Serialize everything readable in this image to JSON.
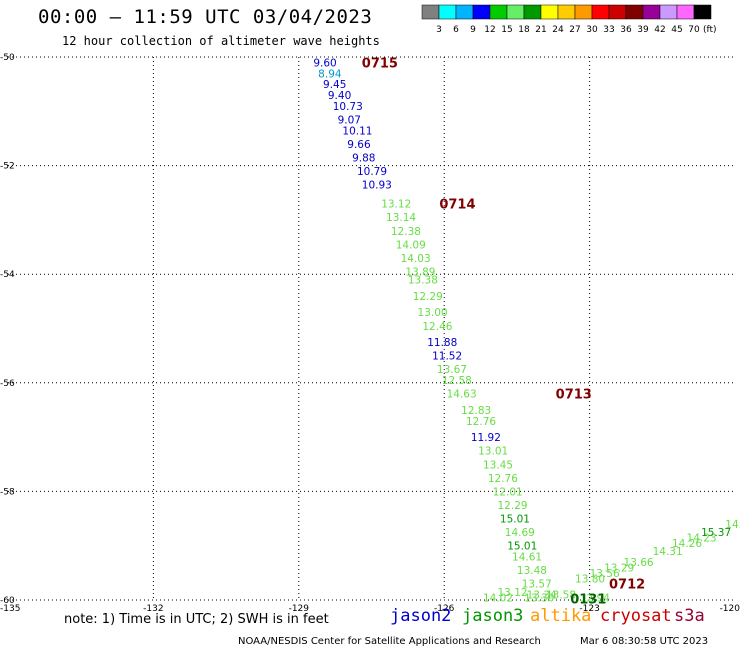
{
  "title": "00:00 – 11:59 UTC 03/04/2023",
  "subtitle": "12 hour collection of altimeter wave heights",
  "legend": {
    "unit": "(ft)",
    "colors": [
      "#808080",
      "#00ffff",
      "#00b4ff",
      "#0000ff",
      "#00cc00",
      "#66ee66",
      "#009900",
      "#ffff00",
      "#ffcc00",
      "#ff9900",
      "#ff0000",
      "#cc0000",
      "#800000",
      "#990099",
      "#cc99ff",
      "#ff66ff",
      "#000000"
    ],
    "labels": [
      "3",
      "6",
      "9",
      "12",
      "15",
      "18",
      "21",
      "24",
      "27",
      "30",
      "33",
      "36",
      "39",
      "42",
      "45",
      "70"
    ]
  },
  "axes": {
    "lat_labels": [
      "-50",
      "-52",
      "-54",
      "-56",
      "-58",
      "-60"
    ],
    "lon_labels": [
      "-135",
      "-132",
      "-129",
      "-126",
      "-123",
      "-120"
    ],
    "lat_range": [
      -60,
      -50
    ],
    "lon_range": [
      -135,
      -120
    ]
  },
  "note": "note:  1) Time is in UTC;  2) SWH is in feet",
  "satellites": [
    {
      "name": "jason2",
      "color": "#0000cc"
    },
    {
      "name": "jason3",
      "color": "#009900"
    },
    {
      "name": "altika",
      "color": "#ff9900"
    },
    {
      "name": "cryosat",
      "color": "#cc0000"
    },
    {
      "name": "s3a",
      "color": "#990033"
    }
  ],
  "footer_left": "NOAA/NESDIS Center for Satellite Applications and Research",
  "footer_right": "Mar  6 08:30:58 UTC 2023",
  "chart_data": {
    "type": "scatter",
    "grid": true,
    "time_labels": [
      {
        "text": "0715",
        "lon": -127.7,
        "lat": -50.1,
        "color": "#800000"
      },
      {
        "text": "0714",
        "lon": -126.1,
        "lat": -52.7,
        "color": "#800000"
      },
      {
        "text": "0713",
        "lon": -123.7,
        "lat": -56.2,
        "color": "#800000"
      },
      {
        "text": "0712",
        "lon": -122.6,
        "lat": -59.7,
        "color": "#800000"
      },
      {
        "text": "0131",
        "lon": -123.4,
        "lat": -59.97,
        "color": "#006600"
      }
    ],
    "points": [
      {
        "v": "9.60",
        "lon": -128.7,
        "lat": -50.1,
        "color": "#0000cc"
      },
      {
        "v": "8.94",
        "lon": -128.6,
        "lat": -50.3,
        "color": "#0099cc"
      },
      {
        "v": "9.45",
        "lon": -128.5,
        "lat": -50.5,
        "color": "#0000cc"
      },
      {
        "v": "9.40",
        "lon": -128.4,
        "lat": -50.7,
        "color": "#0000cc"
      },
      {
        "v": "10.73",
        "lon": -128.3,
        "lat": -50.9,
        "color": "#0000cc"
      },
      {
        "v": "9.07",
        "lon": -128.2,
        "lat": -51.15,
        "color": "#0000cc"
      },
      {
        "v": "10.11",
        "lon": -128.1,
        "lat": -51.35,
        "color": "#0000cc"
      },
      {
        "v": "9.66",
        "lon": -128.0,
        "lat": -51.6,
        "color": "#0000cc"
      },
      {
        "v": "9.88",
        "lon": -127.9,
        "lat": -51.85,
        "color": "#0000cc"
      },
      {
        "v": "10.79",
        "lon": -127.8,
        "lat": -52.1,
        "color": "#0000cc"
      },
      {
        "v": "10.93",
        "lon": -127.7,
        "lat": -52.35,
        "color": "#0000cc"
      },
      {
        "v": "13.12",
        "lon": -127.3,
        "lat": -52.7,
        "color": "#66dd44"
      },
      {
        "v": "13.14",
        "lon": -127.2,
        "lat": -52.95,
        "color": "#66dd44"
      },
      {
        "v": "12.38",
        "lon": -127.1,
        "lat": -53.2,
        "color": "#66dd44"
      },
      {
        "v": "14.09",
        "lon": -127.0,
        "lat": -53.45,
        "color": "#66dd44"
      },
      {
        "v": "14.03",
        "lon": -126.9,
        "lat": -53.7,
        "color": "#66dd44"
      },
      {
        "v": "13.89",
        "lon": -126.8,
        "lat": -53.95,
        "color": "#66dd44"
      },
      {
        "v": "13.38",
        "lon": -126.75,
        "lat": -54.1,
        "color": "#66dd44"
      },
      {
        "v": "12.29",
        "lon": -126.65,
        "lat": -54.4,
        "color": "#66dd44"
      },
      {
        "v": "13.00",
        "lon": -126.55,
        "lat": -54.7,
        "color": "#66dd44"
      },
      {
        "v": "12.46",
        "lon": -126.45,
        "lat": -54.95,
        "color": "#66dd44"
      },
      {
        "v": "11.88",
        "lon": -126.35,
        "lat": -55.25,
        "color": "#0000cc"
      },
      {
        "v": "11.52",
        "lon": -126.25,
        "lat": -55.5,
        "color": "#0000cc"
      },
      {
        "v": "13.67",
        "lon": -126.15,
        "lat": -55.75,
        "color": "#66dd44"
      },
      {
        "v": "12.58",
        "lon": -126.05,
        "lat": -55.95,
        "color": "#66dd44"
      },
      {
        "v": "14.63",
        "lon": -125.95,
        "lat": -56.2,
        "color": "#66dd44"
      },
      {
        "v": "12.83",
        "lon": -125.65,
        "lat": -56.5,
        "color": "#66dd44"
      },
      {
        "v": "12.76",
        "lon": -125.55,
        "lat": -56.7,
        "color": "#66dd44"
      },
      {
        "v": "11.92",
        "lon": -125.45,
        "lat": -57.0,
        "color": "#0000cc"
      },
      {
        "v": "13.01",
        "lon": -125.3,
        "lat": -57.25,
        "color": "#66dd44"
      },
      {
        "v": "13.45",
        "lon": -125.2,
        "lat": -57.5,
        "color": "#66dd44"
      },
      {
        "v": "12.76",
        "lon": -125.1,
        "lat": -57.75,
        "color": "#66dd44"
      },
      {
        "v": "12.01",
        "lon": -125.0,
        "lat": -58.0,
        "color": "#66dd44"
      },
      {
        "v": "12.29",
        "lon": -124.9,
        "lat": -58.25,
        "color": "#66dd44"
      },
      {
        "v": "15.01",
        "lon": -124.85,
        "lat": -58.5,
        "color": "#009900"
      },
      {
        "v": "14.69",
        "lon": -124.75,
        "lat": -58.75,
        "color": "#66dd44"
      },
      {
        "v": "15.01",
        "lon": -124.7,
        "lat": -59.0,
        "color": "#009900"
      },
      {
        "v": "14.61",
        "lon": -124.6,
        "lat": -59.2,
        "color": "#66dd44"
      },
      {
        "v": "13.48",
        "lon": -124.5,
        "lat": -59.45,
        "color": "#66dd44"
      },
      {
        "v": "13.57",
        "lon": -124.4,
        "lat": -59.7,
        "color": "#66dd44"
      },
      {
        "v": "13.30",
        "lon": -124.35,
        "lat": -59.95,
        "color": "#66dd44"
      },
      {
        "v": "13.34",
        "lon": -124.3,
        "lat": -59.9,
        "color": "#66dd44"
      },
      {
        "v": "13.58",
        "lon": -123.9,
        "lat": -59.9,
        "color": "#66dd44"
      },
      {
        "v": "12.94",
        "lon": -123.2,
        "lat": -59.95,
        "color": "#66dd44"
      },
      {
        "v": "13.12",
        "lon": -124.9,
        "lat": -59.85,
        "color": "#66dd44"
      },
      {
        "v": "14.02",
        "lon": -125.2,
        "lat": -59.95,
        "color": "#66dd44"
      },
      {
        "v": "13.80",
        "lon": -123.3,
        "lat": -59.6,
        "color": "#66dd44"
      },
      {
        "v": "13.56",
        "lon": -123.0,
        "lat": -59.5,
        "color": "#66dd44"
      },
      {
        "v": "13.29",
        "lon": -122.7,
        "lat": -59.4,
        "color": "#66dd44"
      },
      {
        "v": "13.66",
        "lon": -122.3,
        "lat": -59.3,
        "color": "#66dd44"
      },
      {
        "v": "14.31",
        "lon": -121.7,
        "lat": -59.1,
        "color": "#66dd44"
      },
      {
        "v": "14.26",
        "lon": -121.3,
        "lat": -58.95,
        "color": "#66dd44"
      },
      {
        "v": "14.23",
        "lon": -121.0,
        "lat": -58.85,
        "color": "#66dd44"
      },
      {
        "v": "15.37",
        "lon": -120.7,
        "lat": -58.75,
        "color": "#009900"
      },
      {
        "v": "14.39",
        "lon": -120.2,
        "lat": -58.6,
        "color": "#66dd44"
      },
      {
        "v": "15.30",
        "lon": -119.9,
        "lat": -58.4,
        "color": "#009900"
      },
      {
        "v": "14.2",
        "lon": -119.5,
        "lat": -58.25,
        "color": "#66dd44"
      }
    ]
  }
}
